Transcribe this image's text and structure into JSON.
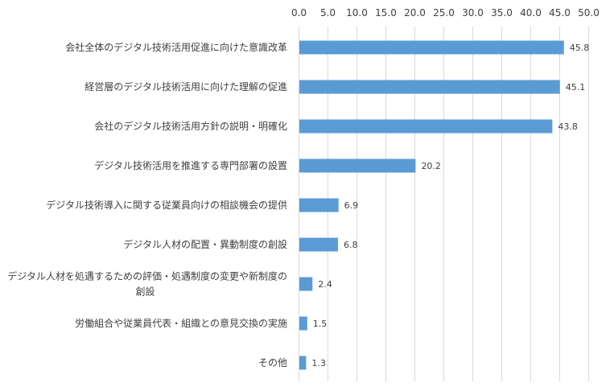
{
  "chart_data": {
    "type": "bar",
    "orientation": "horizontal",
    "title": "",
    "xlabel": "",
    "ylabel": "",
    "xlim": [
      0,
      50
    ],
    "xticks": [
      "0.0",
      "5.0",
      "10.0",
      "15.0",
      "20.0",
      "25.0",
      "30.0",
      "35.0",
      "40.0",
      "45.0",
      "50.0"
    ],
    "x_axis_position": "top",
    "grid": true,
    "legend": "none",
    "bar_color": "#5b9bd5",
    "categories": [
      [
        "会社全体のデジタル技術活用促進に向けた意識改革"
      ],
      [
        "経営層のデジタル技術活用に向けた理解の促進"
      ],
      [
        "会社のデジタル技術活用方針の説明・明確化"
      ],
      [
        "デジタル技術活用を推進する専門部署の設置"
      ],
      [
        "デジタル技術導入に関する従業員向けの相談機会の提供"
      ],
      [
        "デジタル人材の配置・異動制度の創設"
      ],
      [
        "デジタル人材を処遇するための評価・処遇制度の変更や新制度の",
        "創設"
      ],
      [
        "労働組合や従業員代表・組織との意見交換の実施"
      ],
      [
        "その他"
      ]
    ],
    "values": [
      45.8,
      45.1,
      43.8,
      20.2,
      6.9,
      6.8,
      2.4,
      1.5,
      1.3
    ],
    "value_labels": [
      "45.8",
      "45.1",
      "43.8",
      "20.2",
      "6.9",
      "6.8",
      "2.4",
      "1.5",
      "1.3"
    ]
  }
}
